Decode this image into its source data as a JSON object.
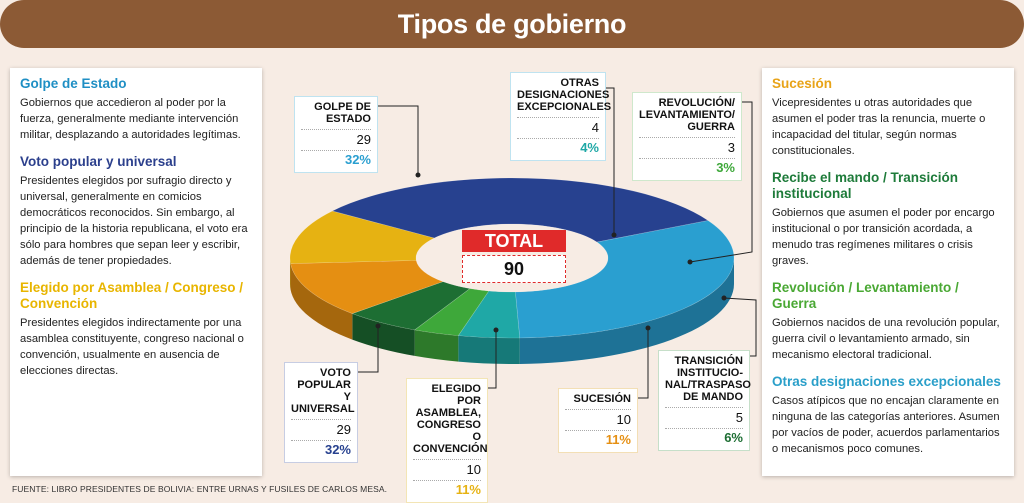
{
  "title": "Tipos de gobierno",
  "source": "FUENTE: LIBRO PRESIDENTES DE BOLIVIA: ENTRE URNAS Y FUSILES DE CARLOS MESA.",
  "total": {
    "label": "TOTAL",
    "value": "90"
  },
  "left_panel": [
    {
      "title": "Golpe de Estado",
      "color": "#1f8fc4",
      "text": "Gobiernos que accedieron al poder por la fuerza, generalmente mediante intervención militar, desplazando a autoridades legítimas."
    },
    {
      "title": "Voto popular y universal",
      "color": "#2b3f8c",
      "text": "Presidentes elegidos por sufragio directo y universal, generalmente en comicios democráticos reconocidos. Sin embargo, al principio de la historia republicana, el voto era sólo para hombres que sepan leer y escribir, además de tener propiedades."
    },
    {
      "title": "Elegido por Asamblea / Congreso / Convención",
      "color": "#e8b500",
      "text": "Presidentes elegidos indirectamente por una asamblea constituyente, congreso nacional o convención, usualmente en ausencia de elecciones directas."
    }
  ],
  "right_panel": [
    {
      "title": "Sucesión",
      "color": "#e8a317",
      "text": "Vicepresidentes u otras autoridades que asumen el poder tras la renuncia, muerte o incapacidad del titular, según normas constitucionales."
    },
    {
      "title": "Recibe el mando / Transición institucional",
      "color": "#1e7b3a",
      "text": "Gobiernos que asumen el poder por encargo institucional o por transición acordada, a menudo tras regímenes militares o crisis graves."
    },
    {
      "title": "Revolución / Levantamiento / Guerra",
      "color": "#4aa834",
      "text": "Gobiernos nacidos de una revolución popular, guerra civil o levantamiento armado, sin mecanismo electoral tradicional."
    },
    {
      "title": "Otras designaciones excepcionales",
      "color": "#2a9fc9",
      "text": "Casos atípicos que no encajan claramente en ninguna de las categorías anteriores. Asumen por vacíos de poder, acuerdos parlamentarios o mecanismos poco comunes."
    }
  ],
  "chart_data": {
    "type": "pie",
    "total": 90,
    "slices": [
      {
        "label": "GOLPE DE ESTADO",
        "value": 29,
        "percent": "32%",
        "color": "#2a9fd0"
      },
      {
        "label": "OTRAS DESIGNACIONES EXCEPCIONALES",
        "value": 4,
        "percent": "4%",
        "color": "#1fa8a6"
      },
      {
        "label": "REVOLUCIÓN/ LEVANTAMIENTO/ GUERRA",
        "value": 3,
        "percent": "3%",
        "color": "#3ea83a"
      },
      {
        "label": "TRANSICIÓN INSTITUCIO-NAL/TRASPASO DE MANDO",
        "value": 5,
        "percent": "6%",
        "color": "#1d6e33"
      },
      {
        "label": "SUCESIÓN",
        "value": 10,
        "percent": "11%",
        "color": "#e58f12"
      },
      {
        "label": "ELEGIDO POR ASAMBLEA, CONGRESO O CONVENCIÓN",
        "value": 10,
        "percent": "11%",
        "color": "#e6b212"
      },
      {
        "label": "VOTO POPULAR Y UNIVERSAL",
        "value": 29,
        "percent": "32%",
        "color": "#27418f"
      }
    ]
  }
}
